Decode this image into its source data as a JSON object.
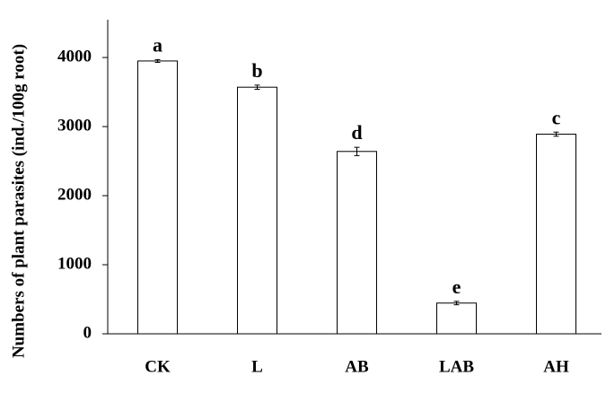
{
  "chart_data": {
    "type": "bar",
    "y_label": "Numbers of  plant parasites (ind./100g root)",
    "categories": [
      "CK",
      "L",
      "AB",
      "LAB",
      "AH"
    ],
    "values": [
      3950,
      3570,
      2640,
      445,
      2890
    ],
    "errors": [
      20,
      30,
      60,
      25,
      30
    ],
    "labels": [
      "a",
      "b",
      "d",
      "e",
      "c"
    ],
    "color": "#ffffff",
    "ylim": [
      0,
      4500
    ],
    "yticks": [
      0,
      1000,
      2000,
      3000,
      4000
    ],
    "grid": false
  }
}
